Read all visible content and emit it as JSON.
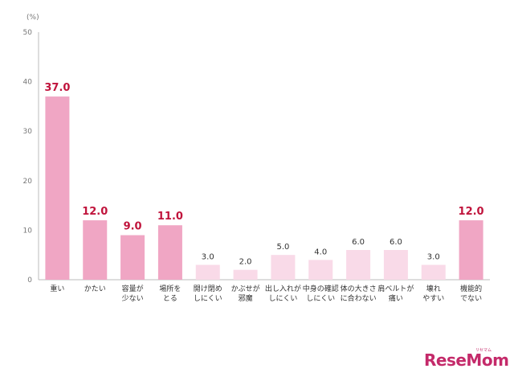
{
  "chart_data": {
    "type": "bar",
    "unit_label": "(%)",
    "categories": [
      [
        "重い"
      ],
      [
        "かたい"
      ],
      [
        "容量が",
        "少ない"
      ],
      [
        "場所を",
        "とる"
      ],
      [
        "開け閉め",
        "しにくい"
      ],
      [
        "かぶせが",
        "邪魔"
      ],
      [
        "出し入れが",
        "しにくい"
      ],
      [
        "中身の確認",
        "しにくい"
      ],
      [
        "体の大きさ",
        "に合わない"
      ],
      [
        "肩ベルトが",
        "痛い"
      ],
      [
        "壊れ",
        "やすい"
      ],
      [
        "機能的",
        "でない"
      ]
    ],
    "values": [
      37.0,
      12.0,
      9.0,
      11.0,
      3.0,
      2.0,
      5.0,
      4.0,
      6.0,
      6.0,
      3.0,
      12.0
    ],
    "value_labels": [
      "37.0",
      "12.0",
      "9.0",
      "11.0",
      "3.0",
      "2.0",
      "5.0",
      "4.0",
      "6.0",
      "6.0",
      "3.0",
      "12.0"
    ],
    "highlighted": [
      true,
      true,
      true,
      true,
      false,
      false,
      false,
      false,
      false,
      false,
      false,
      true
    ],
    "ylim": [
      0,
      50
    ],
    "yticks": [
      0,
      10,
      20,
      30,
      40,
      50
    ],
    "grid": false,
    "colors": {
      "highlight_bar": "#f0a6c4",
      "normal_bar": "#f9dae8",
      "highlight_label": "#c0143c",
      "normal_label": "#333333",
      "axis": "#bbbbbb"
    }
  },
  "brand": {
    "logo_text": "ReseMom",
    "logo_ruby": "リセマム"
  }
}
